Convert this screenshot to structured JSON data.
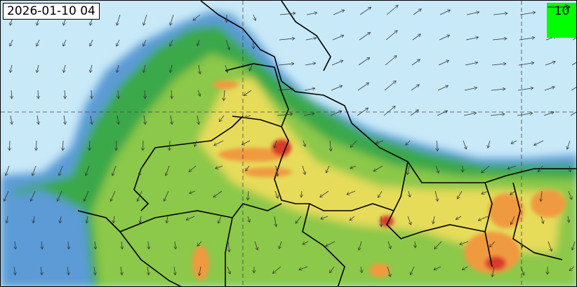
{
  "timestamp": "2026-01-10 04",
  "wind_legend": {
    "value": "10",
    "background": "#00ff00"
  },
  "colors": {
    "ocean_background": "#c8e9f8",
    "low": "#5b9bd5",
    "mid_low": "#82c4e8",
    "green": "#3aa84a",
    "light_green": "#8cc84a",
    "yellow": "#f2e05a",
    "orange": "#f09a40",
    "red": "#d83a2a",
    "border": "#000000"
  }
}
